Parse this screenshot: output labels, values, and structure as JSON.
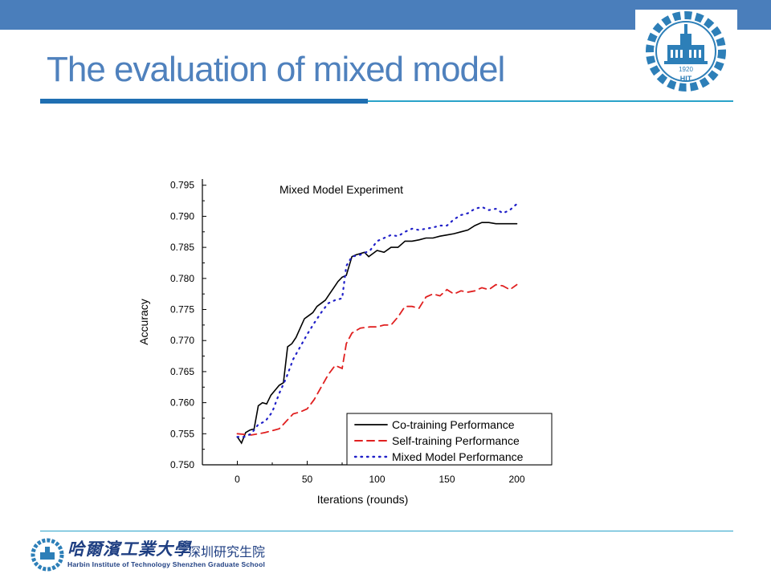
{
  "slide": {
    "title": "The evaluation of mixed model",
    "logo_year": "1920",
    "logo_letters": "HIT",
    "footer_cn_main": "哈爾濱工業大學",
    "footer_cn_sub": "深圳研究生院",
    "footer_en": "Harbin Institute of Technology Shenzhen Graduate School"
  },
  "colors": {
    "bar": "#4a7ebb",
    "title": "#4f81bd",
    "accent": "#1f6fb2",
    "rule": "#2aa3c9"
  },
  "chart_data": {
    "type": "line",
    "title": "Mixed Model Experiment",
    "xlabel": "Iterations (rounds)",
    "ylabel": "Accuracy",
    "xlim": [
      -25,
      225
    ],
    "ylim": [
      0.75,
      0.796
    ],
    "x_ticks": [
      0,
      50,
      100,
      150,
      200
    ],
    "y_ticks": [
      "0.750",
      "0.755",
      "0.760",
      "0.765",
      "0.770",
      "0.775",
      "0.780",
      "0.785",
      "0.790",
      "0.795"
    ],
    "legend_position": "bottom-right",
    "grid": false,
    "series": [
      {
        "name": "Co-training Performance",
        "color": "#000000",
        "style": "solid",
        "x": [
          0,
          3,
          6,
          9,
          12,
          15,
          18,
          21,
          24,
          27,
          30,
          33,
          36,
          39,
          42,
          45,
          48,
          51,
          54,
          57,
          60,
          63,
          66,
          69,
          72,
          75,
          78,
          80,
          82,
          85,
          88,
          91,
          94,
          97,
          100,
          105,
          110,
          115,
          120,
          125,
          130,
          135,
          140,
          145,
          150,
          155,
          160,
          165,
          170,
          175,
          180,
          185,
          190,
          195,
          200
        ],
        "y": [
          0.7545,
          0.7535,
          0.7552,
          0.7556,
          0.7558,
          0.7595,
          0.76,
          0.7598,
          0.7612,
          0.762,
          0.7628,
          0.7632,
          0.769,
          0.7695,
          0.7705,
          0.772,
          0.7735,
          0.774,
          0.7745,
          0.7755,
          0.776,
          0.7765,
          0.7775,
          0.7785,
          0.7795,
          0.7802,
          0.7805,
          0.782,
          0.7835,
          0.7838,
          0.784,
          0.7842,
          0.7835,
          0.784,
          0.7845,
          0.7842,
          0.785,
          0.785,
          0.786,
          0.786,
          0.7862,
          0.7865,
          0.7865,
          0.7868,
          0.787,
          0.7872,
          0.7875,
          0.7878,
          0.7885,
          0.789,
          0.789,
          0.7888,
          0.7888,
          0.7888,
          0.7888
        ]
      },
      {
        "name": "Self-training Performance",
        "color": "#e02020",
        "style": "dashed",
        "x": [
          0,
          10,
          20,
          30,
          35,
          40,
          45,
          50,
          55,
          60,
          65,
          70,
          75,
          78,
          82,
          88,
          95,
          100,
          105,
          110,
          115,
          120,
          125,
          130,
          135,
          140,
          145,
          150,
          155,
          160,
          165,
          170,
          175,
          180,
          185,
          190,
          195,
          200
        ],
        "y": [
          0.755,
          0.7548,
          0.7552,
          0.7558,
          0.757,
          0.7582,
          0.7585,
          0.759,
          0.7605,
          0.7625,
          0.7645,
          0.766,
          0.7655,
          0.7695,
          0.7712,
          0.772,
          0.7722,
          0.7722,
          0.7725,
          0.7725,
          0.7738,
          0.7755,
          0.7755,
          0.7752,
          0.777,
          0.7775,
          0.7772,
          0.7782,
          0.7775,
          0.778,
          0.7778,
          0.778,
          0.7785,
          0.7782,
          0.779,
          0.7788,
          0.7782,
          0.779
        ]
      },
      {
        "name": "Mixed Model Performance",
        "color": "#2020c8",
        "style": "dotted",
        "x": [
          0,
          5,
          10,
          15,
          20,
          25,
          30,
          35,
          40,
          45,
          50,
          55,
          60,
          65,
          70,
          75,
          78,
          82,
          88,
          95,
          100,
          105,
          110,
          115,
          120,
          125,
          130,
          135,
          140,
          145,
          150,
          155,
          160,
          165,
          170,
          175,
          180,
          185,
          190,
          195,
          200
        ],
        "y": [
          0.7545,
          0.7545,
          0.755,
          0.7565,
          0.757,
          0.7585,
          0.7615,
          0.764,
          0.767,
          0.769,
          0.771,
          0.7728,
          0.7745,
          0.776,
          0.7765,
          0.7768,
          0.782,
          0.7835,
          0.7838,
          0.7845,
          0.786,
          0.7865,
          0.787,
          0.7868,
          0.7875,
          0.788,
          0.7878,
          0.788,
          0.7882,
          0.7885,
          0.7885,
          0.7895,
          0.7902,
          0.7905,
          0.7912,
          0.7915,
          0.791,
          0.7912,
          0.7905,
          0.791,
          0.792
        ]
      }
    ]
  }
}
